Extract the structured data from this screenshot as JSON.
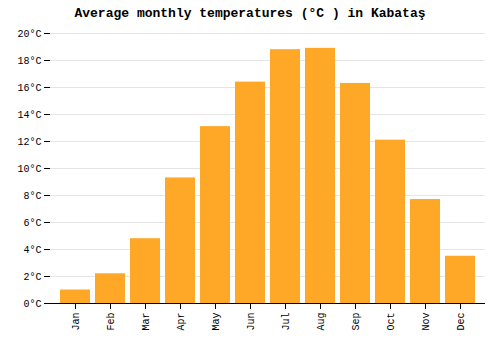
{
  "chart_data": {
    "type": "bar",
    "title": "Average monthly temperatures (°C ) in Kabataş",
    "categories": [
      "Jan",
      "Feb",
      "Mar",
      "Apr",
      "May",
      "Jun",
      "Jul",
      "Aug",
      "Sep",
      "Oct",
      "Nov",
      "Dec"
    ],
    "values": [
      1.0,
      2.2,
      4.8,
      9.3,
      13.1,
      16.4,
      18.8,
      18.9,
      16.3,
      12.1,
      7.7,
      3.5
    ],
    "color": "#FFA726",
    "ylim": [
      0,
      20
    ],
    "yticks": [
      {
        "value": 0,
        "label": "0°C"
      },
      {
        "value": 2,
        "label": "2°C"
      },
      {
        "value": 4,
        "label": "4°C"
      },
      {
        "value": 6,
        "label": "6°C"
      },
      {
        "value": 8,
        "label": "8°C"
      },
      {
        "value": 10,
        "label": "10°C"
      },
      {
        "value": 12,
        "label": "12°C"
      },
      {
        "value": 14,
        "label": "14°C"
      },
      {
        "value": 16,
        "label": "16°C"
      },
      {
        "value": 18,
        "label": "18°C"
      },
      {
        "value": 20,
        "label": "20°C"
      }
    ],
    "grid": true
  }
}
